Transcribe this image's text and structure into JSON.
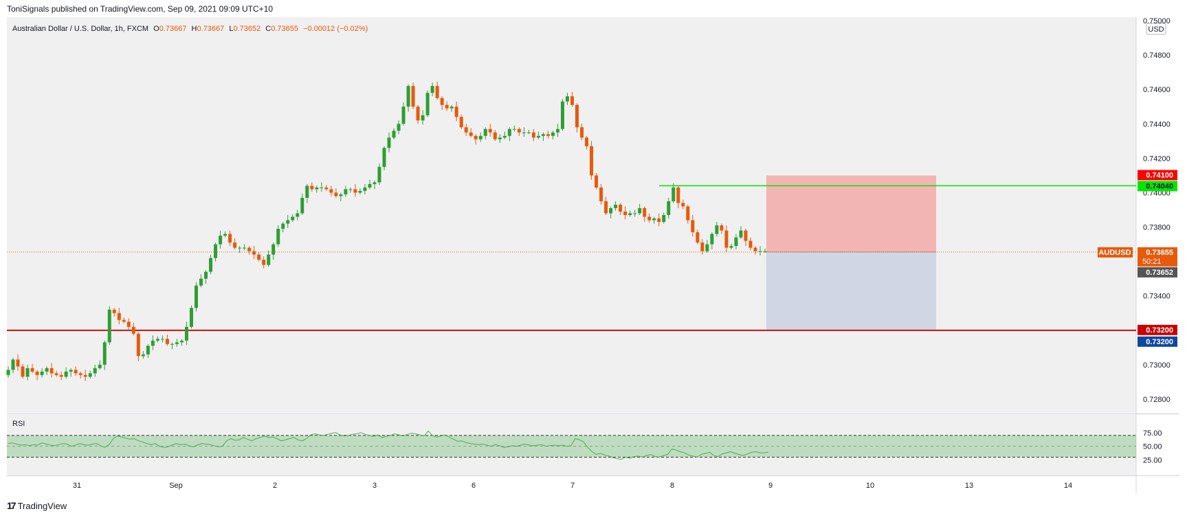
{
  "publisher": "ToniSignals published on TradingView.com, Sep 09, 2021 09:09 UTC+10",
  "legend": {
    "symbol": "Australian Dollar / U.S. Dollar, 1h, FXCM",
    "o_label": "O",
    "o": "0.73667",
    "h_label": "H",
    "h": "0.73667",
    "l_label": "L",
    "l": "0.73652",
    "c_label": "C",
    "c": "0.73655",
    "change": "−0.00012 (−0.02%)"
  },
  "currency": "USD",
  "price_axis": {
    "ticks": [
      "0.75000",
      "0.74800",
      "0.74600",
      "0.74400",
      "0.74200",
      "0.74000",
      "0.73800",
      "0.73400",
      "0.73000",
      "0.72800"
    ],
    "tags": {
      "stop": "0.74100",
      "resistance": "0.74040",
      "symbol": "AUDUSD",
      "last": "0.73655",
      "countdown": "50:21",
      "close": "0.73652",
      "target": "0.73200",
      "support": "0.73200"
    }
  },
  "time_axis": [
    "31",
    "Sep",
    "2",
    "3",
    "6",
    "7",
    "8",
    "9",
    "10",
    "13",
    "14"
  ],
  "rsi": {
    "label": "RSI",
    "ticks": [
      "75.00",
      "50.00",
      "25.00"
    ],
    "upper": 70,
    "lower": 30,
    "mid": 50,
    "values": [
      55,
      56,
      54,
      52,
      53,
      51,
      53,
      52,
      56,
      54,
      52,
      51,
      53,
      55,
      54,
      50,
      52,
      55,
      53,
      52,
      54,
      55,
      51,
      48,
      53,
      64,
      69,
      67,
      65,
      63,
      64,
      60,
      58,
      55,
      53,
      55,
      50,
      48,
      49,
      52,
      55,
      53,
      54,
      51,
      49,
      52,
      55,
      54,
      53,
      51,
      49,
      50,
      60,
      64,
      61,
      62,
      66,
      63,
      60,
      64,
      66,
      69,
      66,
      67,
      64,
      60,
      62,
      64,
      66,
      62,
      60,
      64,
      71,
      73,
      71,
      70,
      72,
      74,
      75,
      71,
      69,
      70,
      72,
      73,
      75,
      72,
      70,
      68,
      71,
      66,
      68,
      70,
      73,
      71,
      69,
      72,
      74,
      73,
      71,
      69,
      78,
      70,
      67,
      69,
      71,
      67,
      63,
      59,
      60,
      57,
      55,
      54,
      53,
      54,
      52,
      50,
      53,
      51,
      48,
      49,
      51,
      50,
      52,
      54,
      52,
      51,
      52,
      53,
      50,
      51,
      52,
      51,
      52,
      50,
      51,
      64,
      62,
      58,
      48,
      40,
      35,
      37,
      34,
      32,
      29,
      27,
      26,
      30,
      28,
      31,
      32,
      30,
      33,
      35,
      31,
      30,
      33,
      35,
      45,
      43,
      40,
      38,
      34,
      32,
      30,
      35,
      37,
      39,
      33,
      31,
      36,
      38,
      40,
      37,
      35,
      33,
      36,
      39,
      40,
      38,
      38,
      39
    ],
    "rsi_color": "#4caf50",
    "band_color": "#4caf50"
  },
  "trade": {
    "entry": 0.73655,
    "stop": 0.741,
    "target": 0.732,
    "resistance": 0.7404,
    "support": 0.732,
    "risk_color": "#ef9a9a",
    "reward_color": "#b2bfd6",
    "resistance_color": "#00e600",
    "support_color": "#cc0000"
  },
  "colors": {
    "up": "#26a69a",
    "up_alt": "#2e9e35",
    "down": "#e8590c",
    "bg": "#f0f0f0",
    "last_price": "#e8590c",
    "close_tag": "#555555",
    "stop_tag": "#ff0000",
    "resistance_tag": "#00e600",
    "target_tag": "#cc0000",
    "support_tag": "#0d47a1"
  },
  "chart_data": {
    "type": "candlestick",
    "title": "Australian Dollar / U.S. Dollar, 1h, FXCM",
    "ylabel": "USD",
    "ylim": [
      0.7272,
      0.7502
    ],
    "close_series": [
      0.7297,
      0.7303,
      0.7299,
      0.7293,
      0.7298,
      0.7296,
      0.7294,
      0.7296,
      0.7298,
      0.7295,
      0.7294,
      0.7293,
      0.7296,
      0.7297,
      0.7295,
      0.7294,
      0.7293,
      0.7295,
      0.7298,
      0.73,
      0.7313,
      0.7332,
      0.733,
      0.7326,
      0.7325,
      0.7322,
      0.7318,
      0.7305,
      0.7306,
      0.7311,
      0.7314,
      0.7315,
      0.7315,
      0.7312,
      0.7312,
      0.7313,
      0.7314,
      0.7322,
      0.7333,
      0.7346,
      0.735,
      0.7354,
      0.7362,
      0.737,
      0.7375,
      0.7376,
      0.7371,
      0.7368,
      0.7368,
      0.7368,
      0.7366,
      0.7364,
      0.7361,
      0.7358,
      0.7364,
      0.737,
      0.7379,
      0.7382,
      0.7384,
      0.7386,
      0.7388,
      0.7397,
      0.7404,
      0.7402,
      0.7403,
      0.7403,
      0.7402,
      0.74,
      0.7398,
      0.7399,
      0.7402,
      0.7402,
      0.74,
      0.7401,
      0.7403,
      0.7405,
      0.7406,
      0.7415,
      0.7426,
      0.7432,
      0.7436,
      0.744,
      0.745,
      0.7462,
      0.745,
      0.7442,
      0.7445,
      0.7458,
      0.7462,
      0.7455,
      0.7451,
      0.7449,
      0.745,
      0.7444,
      0.7438,
      0.7435,
      0.7433,
      0.7431,
      0.7433,
      0.7437,
      0.7435,
      0.7431,
      0.7432,
      0.7433,
      0.7437,
      0.7437,
      0.7435,
      0.7435,
      0.7435,
      0.7432,
      0.7433,
      0.7434,
      0.7433,
      0.7435,
      0.7437,
      0.7453,
      0.7456,
      0.7451,
      0.7438,
      0.7432,
      0.7427,
      0.741,
      0.7403,
      0.7395,
      0.7388,
      0.7391,
      0.7393,
      0.7389,
      0.7387,
      0.7388,
      0.7388,
      0.7391,
      0.7386,
      0.7384,
      0.7385,
      0.7383,
      0.7387,
      0.7395,
      0.7403,
      0.7394,
      0.7392,
      0.7384,
      0.7377,
      0.7371,
      0.7366,
      0.737,
      0.7376,
      0.7381,
      0.7378,
      0.7368,
      0.7369,
      0.7374,
      0.7378,
      0.7372,
      0.7368,
      0.7366,
      0.7366,
      0.7366
    ]
  }
}
